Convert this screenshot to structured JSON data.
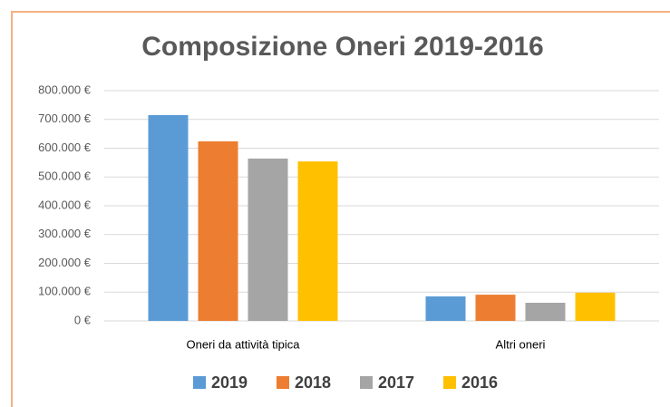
{
  "chart_data": {
    "type": "bar",
    "title": "Composizione Oneri 2019-2016",
    "categories": [
      "Oneri da attività tipica",
      "Altri oneri"
    ],
    "series": [
      {
        "name": "2019",
        "color": "#5b9bd5",
        "values": [
          715000,
          85000
        ]
      },
      {
        "name": "2018",
        "color": "#ed7d31",
        "values": [
          624000,
          91000
        ]
      },
      {
        "name": "2017",
        "color": "#a5a5a5",
        "values": [
          564000,
          63000
        ]
      },
      {
        "name": "2016",
        "color": "#ffc000",
        "values": [
          554000,
          98000
        ]
      }
    ],
    "ylim": [
      0,
      800000
    ],
    "yticks": [
      {
        "value": 0,
        "label": "0 €"
      },
      {
        "value": 100000,
        "label": "100.000 €"
      },
      {
        "value": 200000,
        "label": "200.000 €"
      },
      {
        "value": 300000,
        "label": "300.000 €"
      },
      {
        "value": 400000,
        "label": "400.000 €"
      },
      {
        "value": 500000,
        "label": "500.000 €"
      },
      {
        "value": 600000,
        "label": "600.000 €"
      },
      {
        "value": 700000,
        "label": "700.000 €"
      },
      {
        "value": 800000,
        "label": "800.000 €"
      }
    ],
    "grid": true,
    "legend": "bottom"
  }
}
